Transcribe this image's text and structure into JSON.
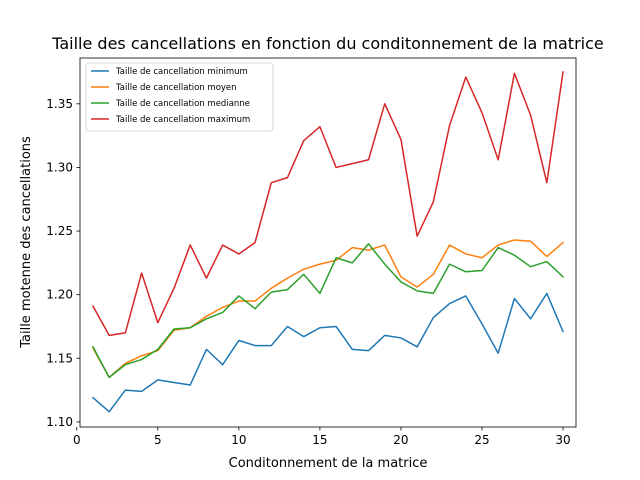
{
  "chart_data": {
    "type": "line",
    "title": "Taille des cancellations en fonction du conditonnement de la matrice",
    "xlabel": "Conditonnement de la matrice",
    "ylabel": "Taille motenne des cancellations",
    "xlim": [
      0.2,
      30.8
    ],
    "ylim": [
      1.096,
      1.386
    ],
    "xticks": [
      0,
      5,
      10,
      15,
      20,
      25,
      30
    ],
    "yticks": [
      1.1,
      1.15,
      1.2,
      1.25,
      1.3,
      1.35
    ],
    "xtick_labels": [
      "0",
      "5",
      "10",
      "15",
      "20",
      "25",
      "30"
    ],
    "ytick_labels": [
      "1.10",
      "1.15",
      "1.20",
      "1.25",
      "1.30",
      "1.35"
    ],
    "grid": false,
    "legend_position": "top-left",
    "x": [
      1,
      2,
      3,
      4,
      5,
      6,
      7,
      8,
      9,
      10,
      11,
      12,
      13,
      14,
      15,
      16,
      17,
      18,
      19,
      20,
      21,
      22,
      23,
      24,
      25,
      26,
      27,
      28,
      29,
      30
    ],
    "series": [
      {
        "name": "Taille de cancellation minimum",
        "color": "#1f77b4",
        "values": [
          1.119,
          1.108,
          1.125,
          1.124,
          1.133,
          1.131,
          1.129,
          1.157,
          1.145,
          1.164,
          1.16,
          1.16,
          1.175,
          1.167,
          1.174,
          1.175,
          1.157,
          1.156,
          1.168,
          1.166,
          1.159,
          1.182,
          1.193,
          1.199,
          1.177,
          1.154,
          1.197,
          1.181,
          1.201,
          1.171
        ]
      },
      {
        "name": "Taille de cancellation moyen",
        "color": "#ff7f0e",
        "values": [
          1.158,
          1.135,
          1.146,
          1.152,
          1.156,
          1.172,
          1.174,
          1.183,
          1.19,
          1.195,
          1.195,
          1.205,
          1.213,
          1.22,
          1.224,
          1.227,
          1.237,
          1.235,
          1.239,
          1.214,
          1.206,
          1.216,
          1.239,
          1.232,
          1.229,
          1.239,
          1.243,
          1.242,
          1.23,
          1.241
        ]
      },
      {
        "name": "Taille de cancellation medianne",
        "color": "#2ca02c",
        "values": [
          1.159,
          1.135,
          1.145,
          1.149,
          1.157,
          1.173,
          1.174,
          1.181,
          1.186,
          1.199,
          1.189,
          1.202,
          1.204,
          1.216,
          1.201,
          1.229,
          1.225,
          1.24,
          1.224,
          1.21,
          1.203,
          1.201,
          1.224,
          1.218,
          1.219,
          1.237,
          1.231,
          1.222,
          1.226,
          1.214
        ]
      },
      {
        "name": "Taille de cancellation maximum",
        "color": "#d62728",
        "values": [
          1.191,
          1.168,
          1.17,
          1.217,
          1.178,
          1.205,
          1.239,
          1.213,
          1.239,
          1.232,
          1.241,
          1.288,
          1.292,
          1.321,
          1.332,
          1.3,
          1.303,
          1.306,
          1.35,
          1.322,
          1.246,
          1.273,
          1.333,
          1.371,
          1.343,
          1.306,
          1.374,
          1.341,
          1.288,
          1.375
        ]
      }
    ]
  }
}
